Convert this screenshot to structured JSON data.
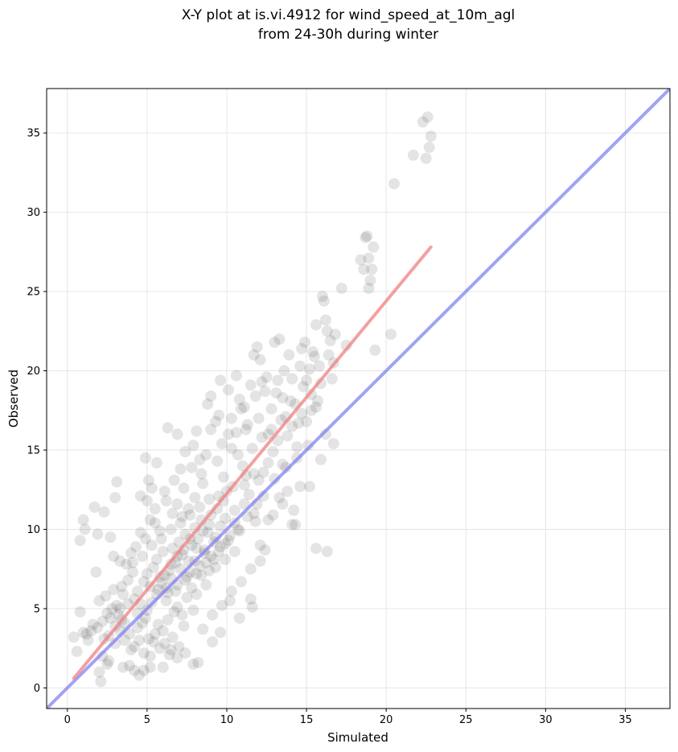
{
  "chart_data": {
    "type": "scatter",
    "title_line1": "X-Y plot at is.vi.4912 for wind_speed_at_10m_agl",
    "title_line2": "from 24-30h during winter",
    "xlabel": "Simulated",
    "ylabel": "Observed",
    "xlim": [
      -1.3,
      37.8
    ],
    "ylim": [
      -1.3,
      37.8
    ],
    "xticks": [
      0,
      5,
      10,
      15,
      20,
      25,
      30,
      35
    ],
    "yticks": [
      0,
      5,
      10,
      15,
      20,
      25,
      30,
      35
    ],
    "grid": true,
    "point_color": "#222222",
    "fit_line": {
      "color": "#f08080",
      "x": [
        0.4,
        22.8
      ],
      "y": [
        0.6,
        27.8
      ]
    },
    "identity_line": {
      "color": "#7b7bef",
      "x": [
        -1.3,
        37.8
      ],
      "y": [
        -1.3,
        37.8
      ]
    },
    "points": [
      [
        0.4,
        3.2
      ],
      [
        0.6,
        2.3
      ],
      [
        0.8,
        4.8
      ],
      [
        0.8,
        9.3
      ],
      [
        1.0,
        10.6
      ],
      [
        1.1,
        10.0
      ],
      [
        1.0,
        3.5
      ],
      [
        1.3,
        3.0
      ],
      [
        1.5,
        3.6
      ],
      [
        1.7,
        11.4
      ],
      [
        1.8,
        7.3
      ],
      [
        1.9,
        9.7
      ],
      [
        2.0,
        1.0
      ],
      [
        2.1,
        0.4
      ],
      [
        2.2,
        2.0
      ],
      [
        2.3,
        11.1
      ],
      [
        2.5,
        1.5
      ],
      [
        2.6,
        1.7
      ],
      [
        2.7,
        9.5
      ],
      [
        2.9,
        8.3
      ],
      [
        3.0,
        12.0
      ],
      [
        3.1,
        13.0
      ],
      [
        3.3,
        8.0
      ],
      [
        3.5,
        1.3
      ],
      [
        3.9,
        1.4
      ],
      [
        4.2,
        1.1
      ],
      [
        4.5,
        0.8
      ],
      [
        4.8,
        1.1
      ],
      [
        5.2,
        1.3
      ],
      [
        6.0,
        1.3
      ],
      [
        4.6,
        12.1
      ],
      [
        4.9,
        14.5
      ],
      [
        5.1,
        13.1
      ],
      [
        5.3,
        12.6
      ],
      [
        5.6,
        14.2
      ],
      [
        6.3,
        16.4
      ],
      [
        6.9,
        16.0
      ],
      [
        7.1,
        13.8
      ],
      [
        7.4,
        14.9
      ],
      [
        7.9,
        15.3
      ],
      [
        8.1,
        16.2
      ],
      [
        8.7,
        14.7
      ],
      [
        9.0,
        16.3
      ],
      [
        8.4,
        13.5
      ],
      [
        8.8,
        17.9
      ],
      [
        9.0,
        18.4
      ],
      [
        9.6,
        19.4
      ],
      [
        9.5,
        17.2
      ],
      [
        10.1,
        16.0
      ],
      [
        10.3,
        17.0
      ],
      [
        10.6,
        19.7
      ],
      [
        10.8,
        18.2
      ],
      [
        11.1,
        17.7
      ],
      [
        11.2,
        16.3
      ],
      [
        11.5,
        19.1
      ],
      [
        11.7,
        21.0
      ],
      [
        11.9,
        21.5
      ],
      [
        12.1,
        20.7
      ],
      [
        12.2,
        19.3
      ],
      [
        12.4,
        18.7
      ],
      [
        12.6,
        16.0
      ],
      [
        12.8,
        17.6
      ],
      [
        13.0,
        21.8
      ],
      [
        13.2,
        19.4
      ],
      [
        13.3,
        22.0
      ],
      [
        13.5,
        18.3
      ],
      [
        13.7,
        17.1
      ],
      [
        13.9,
        21.0
      ],
      [
        14.1,
        19.5
      ],
      [
        14.3,
        17.9
      ],
      [
        14.5,
        16.7
      ],
      [
        14.7,
        21.4
      ],
      [
        14.9,
        21.8
      ],
      [
        15.0,
        19.4
      ],
      [
        15.2,
        20.1
      ],
      [
        15.3,
        17.5
      ],
      [
        15.5,
        20.9
      ],
      [
        15.6,
        22.9
      ],
      [
        15.8,
        20.3
      ],
      [
        16.0,
        24.7
      ],
      [
        16.1,
        24.4
      ],
      [
        16.2,
        23.2
      ],
      [
        16.3,
        22.5
      ],
      [
        16.5,
        21.9
      ],
      [
        16.6,
        19.5
      ],
      [
        16.7,
        20.5
      ],
      [
        16.8,
        22.3
      ],
      [
        17.2,
        25.2
      ],
      [
        17.5,
        21.6
      ],
      [
        18.4,
        27.0
      ],
      [
        18.6,
        26.4
      ],
      [
        18.7,
        28.4
      ],
      [
        18.8,
        28.5
      ],
      [
        18.9,
        27.1
      ],
      [
        19.0,
        25.7
      ],
      [
        19.1,
        26.4
      ],
      [
        18.9,
        25.2
      ],
      [
        19.2,
        27.8
      ],
      [
        19.3,
        21.3
      ],
      [
        20.3,
        22.3
      ],
      [
        20.5,
        31.8
      ],
      [
        21.7,
        33.6
      ],
      [
        22.3,
        35.7
      ],
      [
        22.5,
        33.4
      ],
      [
        22.6,
        36.0
      ],
      [
        22.7,
        34.1
      ],
      [
        22.8,
        34.8
      ],
      [
        16.7,
        15.4
      ],
      [
        16.2,
        16.0
      ],
      [
        15.9,
        14.4
      ],
      [
        15.7,
        18.1
      ],
      [
        15.6,
        8.8
      ],
      [
        15.2,
        12.7
      ],
      [
        14.6,
        12.7
      ],
      [
        14.2,
        11.2
      ],
      [
        14.1,
        10.3
      ],
      [
        13.8,
        12.4
      ],
      [
        13.5,
        11.6
      ],
      [
        13.3,
        12.0
      ],
      [
        12.9,
        10.9
      ],
      [
        12.6,
        10.6
      ],
      [
        12.4,
        8.7
      ],
      [
        12.1,
        9.0
      ],
      [
        11.8,
        10.5
      ],
      [
        11.5,
        5.6
      ],
      [
        11.6,
        5.1
      ],
      [
        10.8,
        4.4
      ],
      [
        10.2,
        5.5
      ],
      [
        9.6,
        3.5
      ],
      [
        9.1,
        2.9
      ],
      [
        8.2,
        1.6
      ],
      [
        7.9,
        1.5
      ],
      [
        7.4,
        2.2
      ],
      [
        6.9,
        1.9
      ],
      [
        6.5,
        2.4
      ],
      [
        16.3,
        8.6
      ],
      [
        14.3,
        10.3
      ],
      [
        10.5,
        8.6
      ],
      [
        9.9,
        9.1
      ],
      [
        11.2,
        13.4
      ],
      [
        10.7,
        14.7
      ],
      [
        10.3,
        15.1
      ],
      [
        9.7,
        15.4
      ],
      [
        9.4,
        14.3
      ],
      [
        8.9,
        11.9
      ],
      [
        8.5,
        12.9
      ],
      [
        8.0,
        12.0
      ],
      [
        7.6,
        11.3
      ],
      [
        7.2,
        10.8
      ],
      [
        6.9,
        11.6
      ],
      [
        6.6,
        11.0
      ],
      [
        6.2,
        11.8
      ],
      [
        5.8,
        9.9
      ],
      [
        5.5,
        10.4
      ],
      [
        5.2,
        10.6
      ],
      [
        4.9,
        9.4
      ],
      [
        4.6,
        9.8
      ],
      [
        4.3,
        8.9
      ],
      [
        4.0,
        8.5
      ],
      [
        3.7,
        7.8
      ],
      [
        3.4,
        6.4
      ],
      [
        3.1,
        5.2
      ],
      [
        2.8,
        5.0
      ],
      [
        2.5,
        4.7
      ],
      [
        2.2,
        4.2
      ],
      [
        1.9,
        3.8
      ],
      [
        2.6,
        3.3
      ],
      [
        3.0,
        2.8
      ],
      [
        3.3,
        3.6
      ],
      [
        3.6,
        4.1
      ],
      [
        3.9,
        3.4
      ],
      [
        4.2,
        2.6
      ],
      [
        4.5,
        3.0
      ],
      [
        4.8,
        2.2
      ],
      [
        5.1,
        3.1
      ],
      [
        5.4,
        2.9
      ],
      [
        5.7,
        4.0
      ],
      [
        6.0,
        3.6
      ],
      [
        6.3,
        4.3
      ],
      [
        6.6,
        3.2
      ],
      [
        6.9,
        5.1
      ],
      [
        7.2,
        4.6
      ],
      [
        7.5,
        5.7
      ],
      [
        7.8,
        6.3
      ],
      [
        8.1,
        5.9
      ],
      [
        8.4,
        7.1
      ],
      [
        8.7,
        6.5
      ],
      [
        9.0,
        8.3
      ],
      [
        9.3,
        7.6
      ],
      [
        9.6,
        8.9
      ],
      [
        9.9,
        8.1
      ],
      [
        10.2,
        9.6
      ],
      [
        10.5,
        10.4
      ],
      [
        10.8,
        9.9
      ],
      [
        11.1,
        11.6
      ],
      [
        11.4,
        12.2
      ],
      [
        11.7,
        11.0
      ],
      [
        12.0,
        13.1
      ],
      [
        12.3,
        13.6
      ],
      [
        12.6,
        14.2
      ],
      [
        12.9,
        14.9
      ],
      [
        13.2,
        15.6
      ],
      [
        13.5,
        14.1
      ],
      [
        13.8,
        15.9
      ],
      [
        14.1,
        16.5
      ],
      [
        14.4,
        15.2
      ],
      [
        14.7,
        17.3
      ],
      [
        15.0,
        16.8
      ],
      [
        15.3,
        18.5
      ],
      [
        15.6,
        17.7
      ],
      [
        4.2,
        5.6
      ],
      [
        4.4,
        6.1
      ],
      [
        4.6,
        5.3
      ],
      [
        4.8,
        6.7
      ],
      [
        5.0,
        7.2
      ],
      [
        5.2,
        6.4
      ],
      [
        5.4,
        7.6
      ],
      [
        5.6,
        8.1
      ],
      [
        5.8,
        7.0
      ],
      [
        6.0,
        8.6
      ],
      [
        6.2,
        6.3
      ],
      [
        6.4,
        7.4
      ],
      [
        6.6,
        8.8
      ],
      [
        6.8,
        7.9
      ],
      [
        7.0,
        9.2
      ],
      [
        7.2,
        8.4
      ],
      [
        7.4,
        9.7
      ],
      [
        7.6,
        8.0
      ],
      [
        7.8,
        9.0
      ],
      [
        8.0,
        10.1
      ],
      [
        8.2,
        9.4
      ],
      [
        8.4,
        10.6
      ],
      [
        8.6,
        8.7
      ],
      [
        8.8,
        9.8
      ],
      [
        9.0,
        10.9
      ],
      [
        9.2,
        9.2
      ],
      [
        9.4,
        11.3
      ],
      [
        9.6,
        10.2
      ],
      [
        9.8,
        11.8
      ],
      [
        10.0,
        12.4
      ],
      [
        3.5,
        5.9
      ],
      [
        3.8,
        6.8
      ],
      [
        4.1,
        7.3
      ],
      [
        4.4,
        4.7
      ],
      [
        4.7,
        4.1
      ],
      [
        5.0,
        4.9
      ],
      [
        5.3,
        5.4
      ],
      [
        5.6,
        5.9
      ],
      [
        5.9,
        6.6
      ],
      [
        6.2,
        5.5
      ],
      [
        6.5,
        6.9
      ],
      [
        6.8,
        6.1
      ],
      [
        7.1,
        7.5
      ],
      [
        7.4,
        6.8
      ],
      [
        7.7,
        7.3
      ],
      [
        8.0,
        8.0
      ],
      [
        8.3,
        7.7
      ],
      [
        8.6,
        8.5
      ],
      [
        8.9,
        7.4
      ],
      [
        9.2,
        8.1
      ],
      [
        7.3,
        12.6
      ],
      [
        6.7,
        13.1
      ],
      [
        6.1,
        12.4
      ],
      [
        5.5,
        11.3
      ],
      [
        5.0,
        11.8
      ],
      [
        7.8,
        13.9
      ],
      [
        8.3,
        14.4
      ],
      [
        9.8,
        13.3
      ],
      [
        10.4,
        12.7
      ],
      [
        11.0,
        14.0
      ],
      [
        11.6,
        15.1
      ],
      [
        12.2,
        15.8
      ],
      [
        12.8,
        16.3
      ],
      [
        13.4,
        16.9
      ],
      [
        14.0,
        18.1
      ],
      [
        12.0,
        17.0
      ],
      [
        11.3,
        16.6
      ],
      [
        10.6,
        16.1
      ],
      [
        13.6,
        20.0
      ],
      [
        14.6,
        20.3
      ],
      [
        15.4,
        21.2
      ],
      [
        16.4,
        21.0
      ],
      [
        15.9,
        19.2
      ],
      [
        14.8,
        19.0
      ],
      [
        13.1,
        18.6
      ],
      [
        12.5,
        19.6
      ],
      [
        11.8,
        18.4
      ],
      [
        10.9,
        17.6
      ],
      [
        10.1,
        18.8
      ],
      [
        9.3,
        16.8
      ],
      [
        2.0,
        5.5
      ],
      [
        2.4,
        5.8
      ],
      [
        2.9,
        6.2
      ],
      [
        3.2,
        4.6
      ],
      [
        3.6,
        3.0
      ],
      [
        4.0,
        2.4
      ],
      [
        4.4,
        3.8
      ],
      [
        4.9,
        4.4
      ],
      [
        5.5,
        3.4
      ],
      [
        6.1,
        2.8
      ],
      [
        6.7,
        4.8
      ],
      [
        7.3,
        3.9
      ],
      [
        7.9,
        4.9
      ],
      [
        8.5,
        3.7
      ],
      [
        9.1,
        4.6
      ],
      [
        9.7,
        5.2
      ],
      [
        10.3,
        6.1
      ],
      [
        10.9,
        6.7
      ],
      [
        11.5,
        7.5
      ],
      [
        12.1,
        8.0
      ],
      [
        5.9,
        9.4
      ],
      [
        6.5,
        10.0
      ],
      [
        7.1,
        10.4
      ],
      [
        7.7,
        10.9
      ],
      [
        8.3,
        11.4
      ],
      [
        5.3,
        9.0
      ],
      [
        4.7,
        8.3
      ],
      [
        4.1,
        7.9
      ],
      [
        3.8,
        5.3
      ],
      [
        3.3,
        5.0
      ],
      [
        6.3,
        6.0
      ],
      [
        6.9,
        6.5
      ],
      [
        7.5,
        7.0
      ],
      [
        8.1,
        7.2
      ],
      [
        8.7,
        7.9
      ],
      [
        9.3,
        9.5
      ],
      [
        9.9,
        10.7
      ],
      [
        10.5,
        11.2
      ],
      [
        11.1,
        12.8
      ],
      [
        11.7,
        13.5
      ],
      [
        5.7,
        6.2
      ],
      [
        6.1,
        7.1
      ],
      [
        6.5,
        7.8
      ],
      [
        6.9,
        8.3
      ],
      [
        7.3,
        8.7
      ],
      [
        7.7,
        9.4
      ],
      [
        8.1,
        8.8
      ],
      [
        8.5,
        9.9
      ],
      [
        8.9,
        10.3
      ],
      [
        9.5,
        12.1
      ],
      [
        3.0,
        3.9
      ],
      [
        3.4,
        4.3
      ],
      [
        2.7,
        4.4
      ],
      [
        2.3,
        3.1
      ],
      [
        1.6,
        4.0
      ],
      [
        1.2,
        3.4
      ],
      [
        5.2,
        2.0
      ],
      [
        5.8,
        2.5
      ],
      [
        6.4,
        2.1
      ],
      [
        7.0,
        2.6
      ],
      [
        13.0,
        13.2
      ],
      [
        13.7,
        13.9
      ],
      [
        14.4,
        14.5
      ],
      [
        15.1,
        15.3
      ],
      [
        12.3,
        12.1
      ],
      [
        11.9,
        11.6
      ],
      [
        11.3,
        10.8
      ],
      [
        10.7,
        10.0
      ],
      [
        10.1,
        9.3
      ],
      [
        9.5,
        8.6
      ]
    ]
  }
}
